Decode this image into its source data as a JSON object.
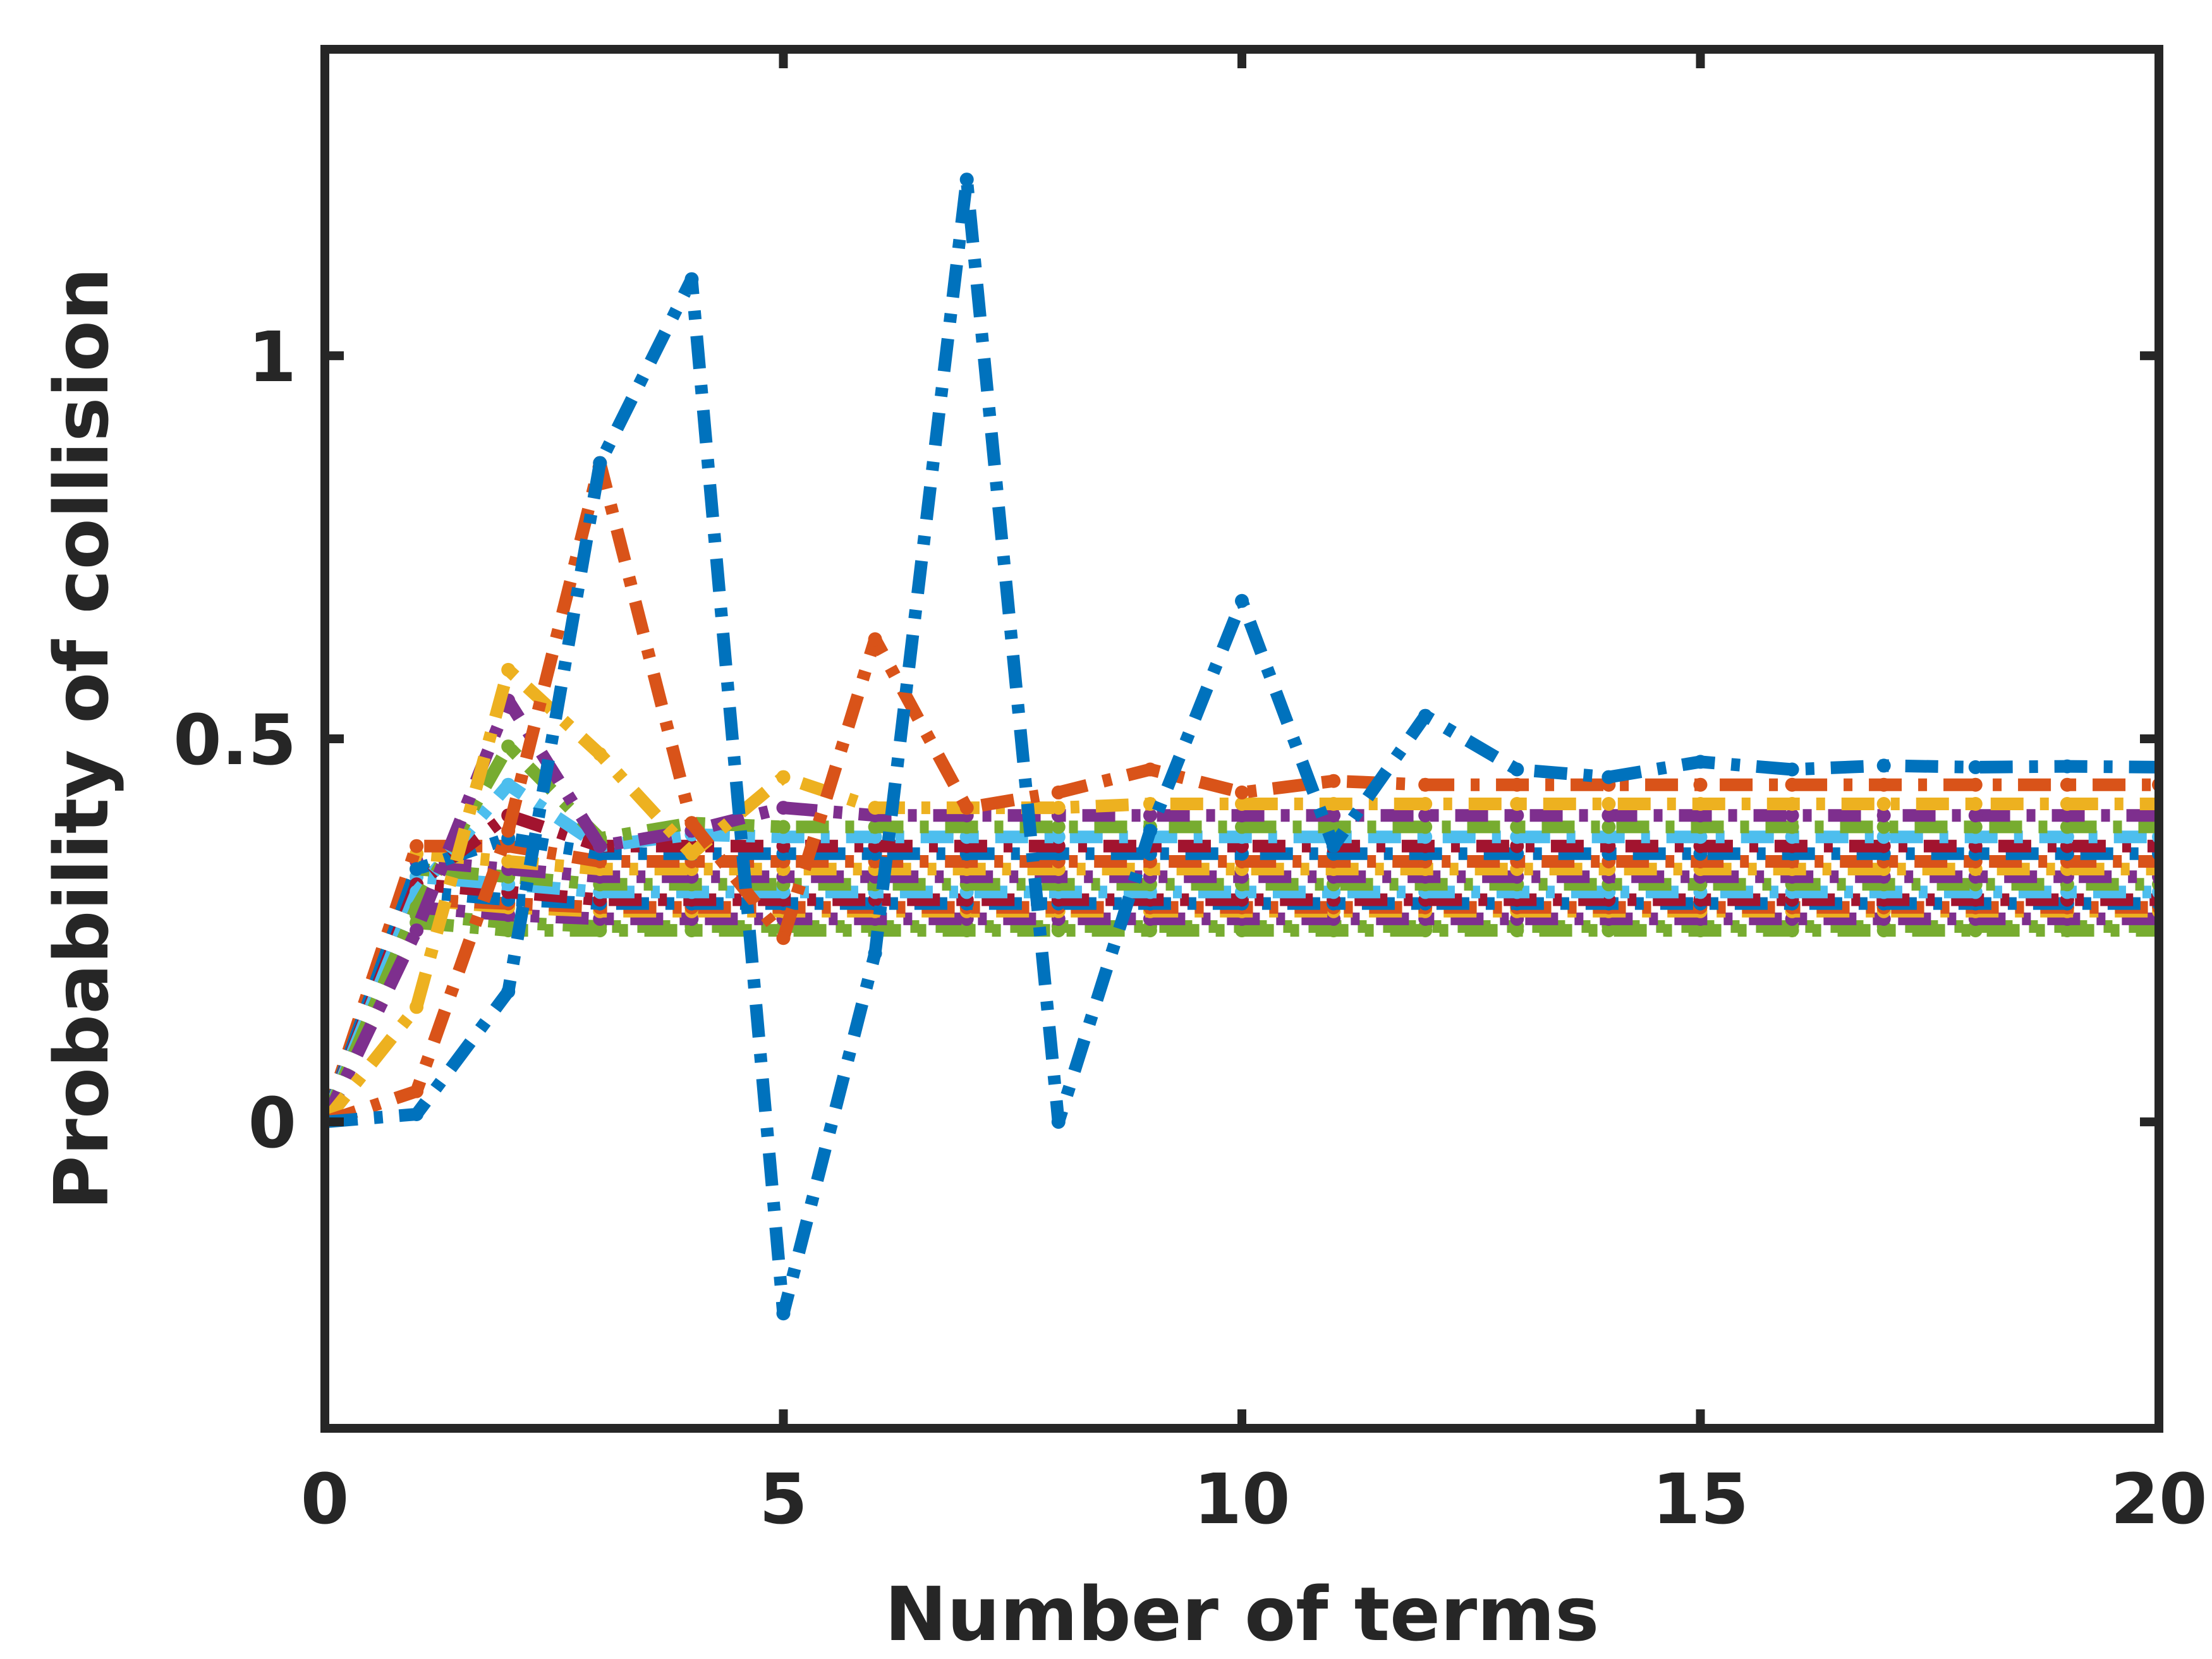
{
  "chart_data": {
    "type": "line",
    "xlabel": "Number of terms",
    "ylabel": "Probability of collision",
    "xlim": [
      0,
      20
    ],
    "ylim": [
      -0.4,
      1.4
    ],
    "xticks": [
      0,
      5,
      10,
      15,
      20
    ],
    "yticks": [
      0,
      0.5,
      1
    ],
    "xtick_labels": [
      "0",
      "5",
      "10",
      "15",
      "20"
    ],
    "ytick_labels": [
      "0",
      "0.5",
      "1"
    ],
    "grid": false,
    "legend": "none",
    "line_style": "dash-dot with point markers",
    "axis_color": "#262626",
    "x": [
      0,
      1,
      2,
      3,
      4,
      5,
      6,
      7,
      8,
      9,
      10,
      11,
      12,
      13,
      14,
      15,
      16,
      17,
      18,
      19,
      20
    ],
    "series": [
      {
        "color": "#0072BD",
        "values": [
          0,
          0.01,
          0.17,
          0.86,
          1.1,
          -0.25,
          0.22,
          1.23,
          0.0,
          0.38,
          0.68,
          0.36,
          0.53,
          0.46,
          0.45,
          0.47,
          0.46,
          0.465,
          0.463,
          0.464,
          0.463
        ]
      },
      {
        "color": "#D95319",
        "values": [
          0,
          0.04,
          0.38,
          0.86,
          0.39,
          0.24,
          0.63,
          0.41,
          0.43,
          0.46,
          0.43,
          0.445,
          0.44,
          0.44,
          0.44,
          0.44,
          0.44,
          0.44,
          0.44,
          0.44,
          0.44
        ]
      },
      {
        "color": "#EDB120",
        "values": [
          0,
          0.15,
          0.59,
          0.48,
          0.35,
          0.45,
          0.41,
          0.41,
          0.41,
          0.415,
          0.415,
          0.415,
          0.415,
          0.415,
          0.415,
          0.415,
          0.415,
          0.415,
          0.415,
          0.415,
          0.415
        ]
      },
      {
        "color": "#7E2F8E",
        "values": [
          0,
          0.25,
          0.55,
          0.36,
          0.38,
          0.41,
          0.4,
          0.4,
          0.4,
          0.4,
          0.4,
          0.4,
          0.4,
          0.4,
          0.4,
          0.4,
          0.4,
          0.4,
          0.4,
          0.4,
          0.4
        ]
      },
      {
        "color": "#77AC30",
        "values": [
          0,
          0.28,
          0.49,
          0.37,
          0.39,
          0.385,
          0.385,
          0.385,
          0.385,
          0.385,
          0.385,
          0.385,
          0.385,
          0.385,
          0.385,
          0.385,
          0.385,
          0.385,
          0.385,
          0.385,
          0.385
        ]
      },
      {
        "color": "#4DBEEE",
        "values": [
          0,
          0.3,
          0.44,
          0.36,
          0.375,
          0.372,
          0.372,
          0.372,
          0.372,
          0.372,
          0.372,
          0.372,
          0.372,
          0.372,
          0.372,
          0.372,
          0.372,
          0.372,
          0.372,
          0.372,
          0.372
        ]
      },
      {
        "color": "#A2142F",
        "values": [
          0,
          0.31,
          0.4,
          0.36,
          0.36,
          0.36,
          0.36,
          0.36,
          0.36,
          0.36,
          0.36,
          0.36,
          0.36,
          0.36,
          0.36,
          0.36,
          0.36,
          0.36,
          0.36,
          0.36,
          0.36
        ]
      },
      {
        "color": "#0072BD",
        "values": [
          0,
          0.33,
          0.37,
          0.35,
          0.35,
          0.35,
          0.35,
          0.35,
          0.35,
          0.35,
          0.35,
          0.35,
          0.35,
          0.35,
          0.35,
          0.35,
          0.35,
          0.35,
          0.35,
          0.35,
          0.35
        ]
      },
      {
        "color": "#D95319",
        "values": [
          0,
          0.36,
          0.36,
          0.34,
          0.34,
          0.34,
          0.34,
          0.34,
          0.34,
          0.34,
          0.34,
          0.34,
          0.34,
          0.34,
          0.34,
          0.34,
          0.34,
          0.34,
          0.34,
          0.34,
          0.34
        ]
      },
      {
        "color": "#EDB120",
        "values": [
          0,
          0.35,
          0.34,
          0.33,
          0.33,
          0.33,
          0.33,
          0.33,
          0.33,
          0.33,
          0.33,
          0.33,
          0.33,
          0.33,
          0.33,
          0.33,
          0.33,
          0.33,
          0.33,
          0.33,
          0.33
        ]
      },
      {
        "color": "#7E2F8E",
        "values": [
          0,
          0.34,
          0.33,
          0.32,
          0.32,
          0.32,
          0.32,
          0.32,
          0.32,
          0.32,
          0.32,
          0.32,
          0.32,
          0.32,
          0.32,
          0.32,
          0.32,
          0.32,
          0.32,
          0.32,
          0.32
        ]
      },
      {
        "color": "#77AC30",
        "values": [
          0,
          0.33,
          0.32,
          0.31,
          0.31,
          0.31,
          0.31,
          0.31,
          0.31,
          0.31,
          0.31,
          0.31,
          0.31,
          0.31,
          0.31,
          0.31,
          0.31,
          0.31,
          0.31,
          0.31,
          0.31
        ]
      },
      {
        "color": "#4DBEEE",
        "values": [
          0,
          0.32,
          0.31,
          0.3,
          0.3,
          0.3,
          0.3,
          0.3,
          0.3,
          0.3,
          0.3,
          0.3,
          0.3,
          0.3,
          0.3,
          0.3,
          0.3,
          0.3,
          0.3,
          0.3,
          0.3
        ]
      },
      {
        "color": "#A2142F",
        "values": [
          0,
          0.31,
          0.3,
          0.29,
          0.29,
          0.29,
          0.29,
          0.29,
          0.29,
          0.29,
          0.29,
          0.29,
          0.29,
          0.29,
          0.29,
          0.29,
          0.29,
          0.29,
          0.29,
          0.29,
          0.29
        ]
      },
      {
        "color": "#0072BD",
        "values": [
          0,
          0.3,
          0.29,
          0.285,
          0.285,
          0.285,
          0.285,
          0.285,
          0.285,
          0.285,
          0.285,
          0.285,
          0.285,
          0.285,
          0.285,
          0.285,
          0.285,
          0.285,
          0.285,
          0.285,
          0.285
        ]
      },
      {
        "color": "#D95319",
        "values": [
          0,
          0.29,
          0.285,
          0.28,
          0.28,
          0.28,
          0.28,
          0.28,
          0.28,
          0.28,
          0.28,
          0.28,
          0.28,
          0.28,
          0.28,
          0.28,
          0.28,
          0.28,
          0.28,
          0.28,
          0.28
        ]
      },
      {
        "color": "#EDB120",
        "values": [
          0,
          0.29,
          0.28,
          0.275,
          0.275,
          0.275,
          0.275,
          0.275,
          0.275,
          0.275,
          0.275,
          0.275,
          0.275,
          0.275,
          0.275,
          0.275,
          0.275,
          0.275,
          0.275,
          0.275,
          0.275
        ]
      },
      {
        "color": "#7E2F8E",
        "values": [
          0,
          0.28,
          0.27,
          0.265,
          0.265,
          0.265,
          0.265,
          0.265,
          0.265,
          0.265,
          0.265,
          0.265,
          0.265,
          0.265,
          0.265,
          0.265,
          0.265,
          0.265,
          0.265,
          0.265,
          0.265
        ]
      },
      {
        "color": "#77AC30",
        "values": [
          0,
          0.27,
          0.26,
          0.255,
          0.255,
          0.255,
          0.255,
          0.255,
          0.255,
          0.255,
          0.255,
          0.255,
          0.255,
          0.255,
          0.255,
          0.255,
          0.255,
          0.255,
          0.255,
          0.255,
          0.255
        ]
      },
      {
        "color": "#77AC30",
        "values": [
          0,
          0.26,
          0.25,
          0.25,
          0.25,
          0.25,
          0.25,
          0.25,
          0.25,
          0.25,
          0.25,
          0.25,
          0.25,
          0.25,
          0.25,
          0.25,
          0.25,
          0.25,
          0.25,
          0.25,
          0.25
        ]
      }
    ]
  }
}
